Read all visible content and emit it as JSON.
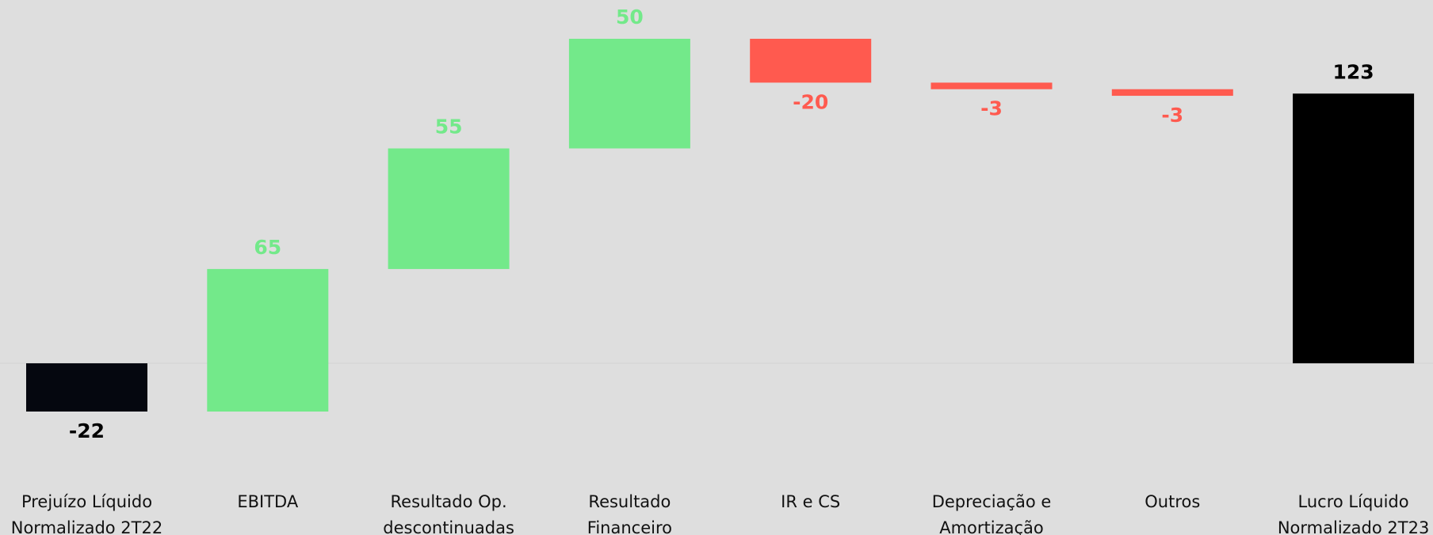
{
  "chart_data": {
    "type": "waterfall",
    "categories": [
      "Prejuízo Líquido Normalizado 2T22",
      "EBITDA",
      "Resultado Op. descontinuadas",
      "Resultado Financeiro",
      "IR e CS",
      "Depreciação e Amortização",
      "Outros",
      "Lucro Líquido Normalizado 2T23"
    ],
    "values": [
      -22,
      65,
      55,
      50,
      -20,
      -3,
      -3,
      123
    ],
    "measure": [
      "absolute",
      "relative",
      "relative",
      "relative",
      "relative",
      "relative",
      "relative",
      "total"
    ],
    "colors": [
      "#05070f",
      "#73e98a",
      "#73e98a",
      "#73e98a",
      "#ff5a4f",
      "#ff5a4f",
      "#ff5a4f",
      "#000000"
    ],
    "label_colors": [
      "#000000",
      "#73e98a",
      "#73e98a",
      "#73e98a",
      "#ff5a4f",
      "#ff5a4f",
      "#ff5a4f",
      "#000000"
    ]
  }
}
